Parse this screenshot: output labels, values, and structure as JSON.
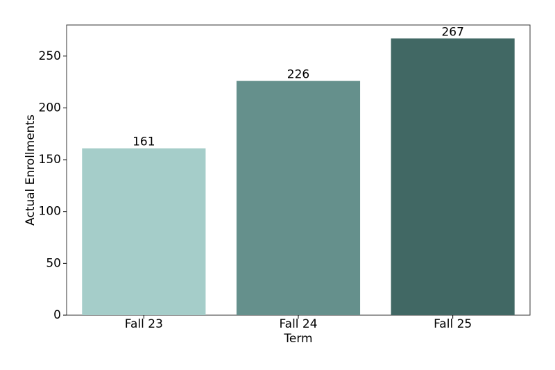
{
  "chart_data": {
    "type": "bar",
    "x_label": "Term",
    "y_label": "Actual Enrollments",
    "categories": [
      "Fall 23",
      "Fall 24",
      "Fall 25"
    ],
    "values": [
      161,
      226,
      267
    ],
    "colors": [
      "#a5cdc9",
      "#65908c",
      "#416864"
    ],
    "ylim": [
      0,
      280
    ],
    "yticks": [
      0,
      50,
      100,
      150,
      200,
      250
    ],
    "grid": false
  }
}
